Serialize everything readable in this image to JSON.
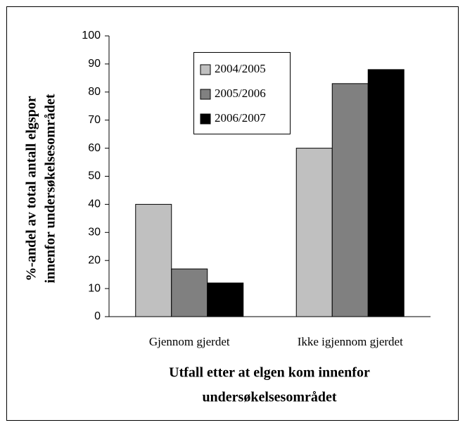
{
  "chart_data": {
    "type": "bar",
    "ylabel": [
      "%-andel av total antall elgspor",
      "innenfor undersøkelsesområdet"
    ],
    "xlabel": [
      "Utfall etter at elgen kom innenfor",
      "undersøkelsesområdet"
    ],
    "categories": [
      "Gjennom gjerdet",
      "Ikke igjennom gjerdet"
    ],
    "series": [
      {
        "name": "2004/2005",
        "color": "#c0c0c0",
        "values": [
          40,
          60
        ]
      },
      {
        "name": "2005/2006",
        "color": "#808080",
        "values": [
          17,
          83
        ]
      },
      {
        "name": "2006/2007",
        "color": "#000000",
        "values": [
          12,
          88
        ]
      }
    ],
    "ylim": [
      0,
      100
    ],
    "yticks": [
      0,
      10,
      20,
      30,
      40,
      50,
      60,
      70,
      80,
      90,
      100
    ],
    "grid": false
  }
}
